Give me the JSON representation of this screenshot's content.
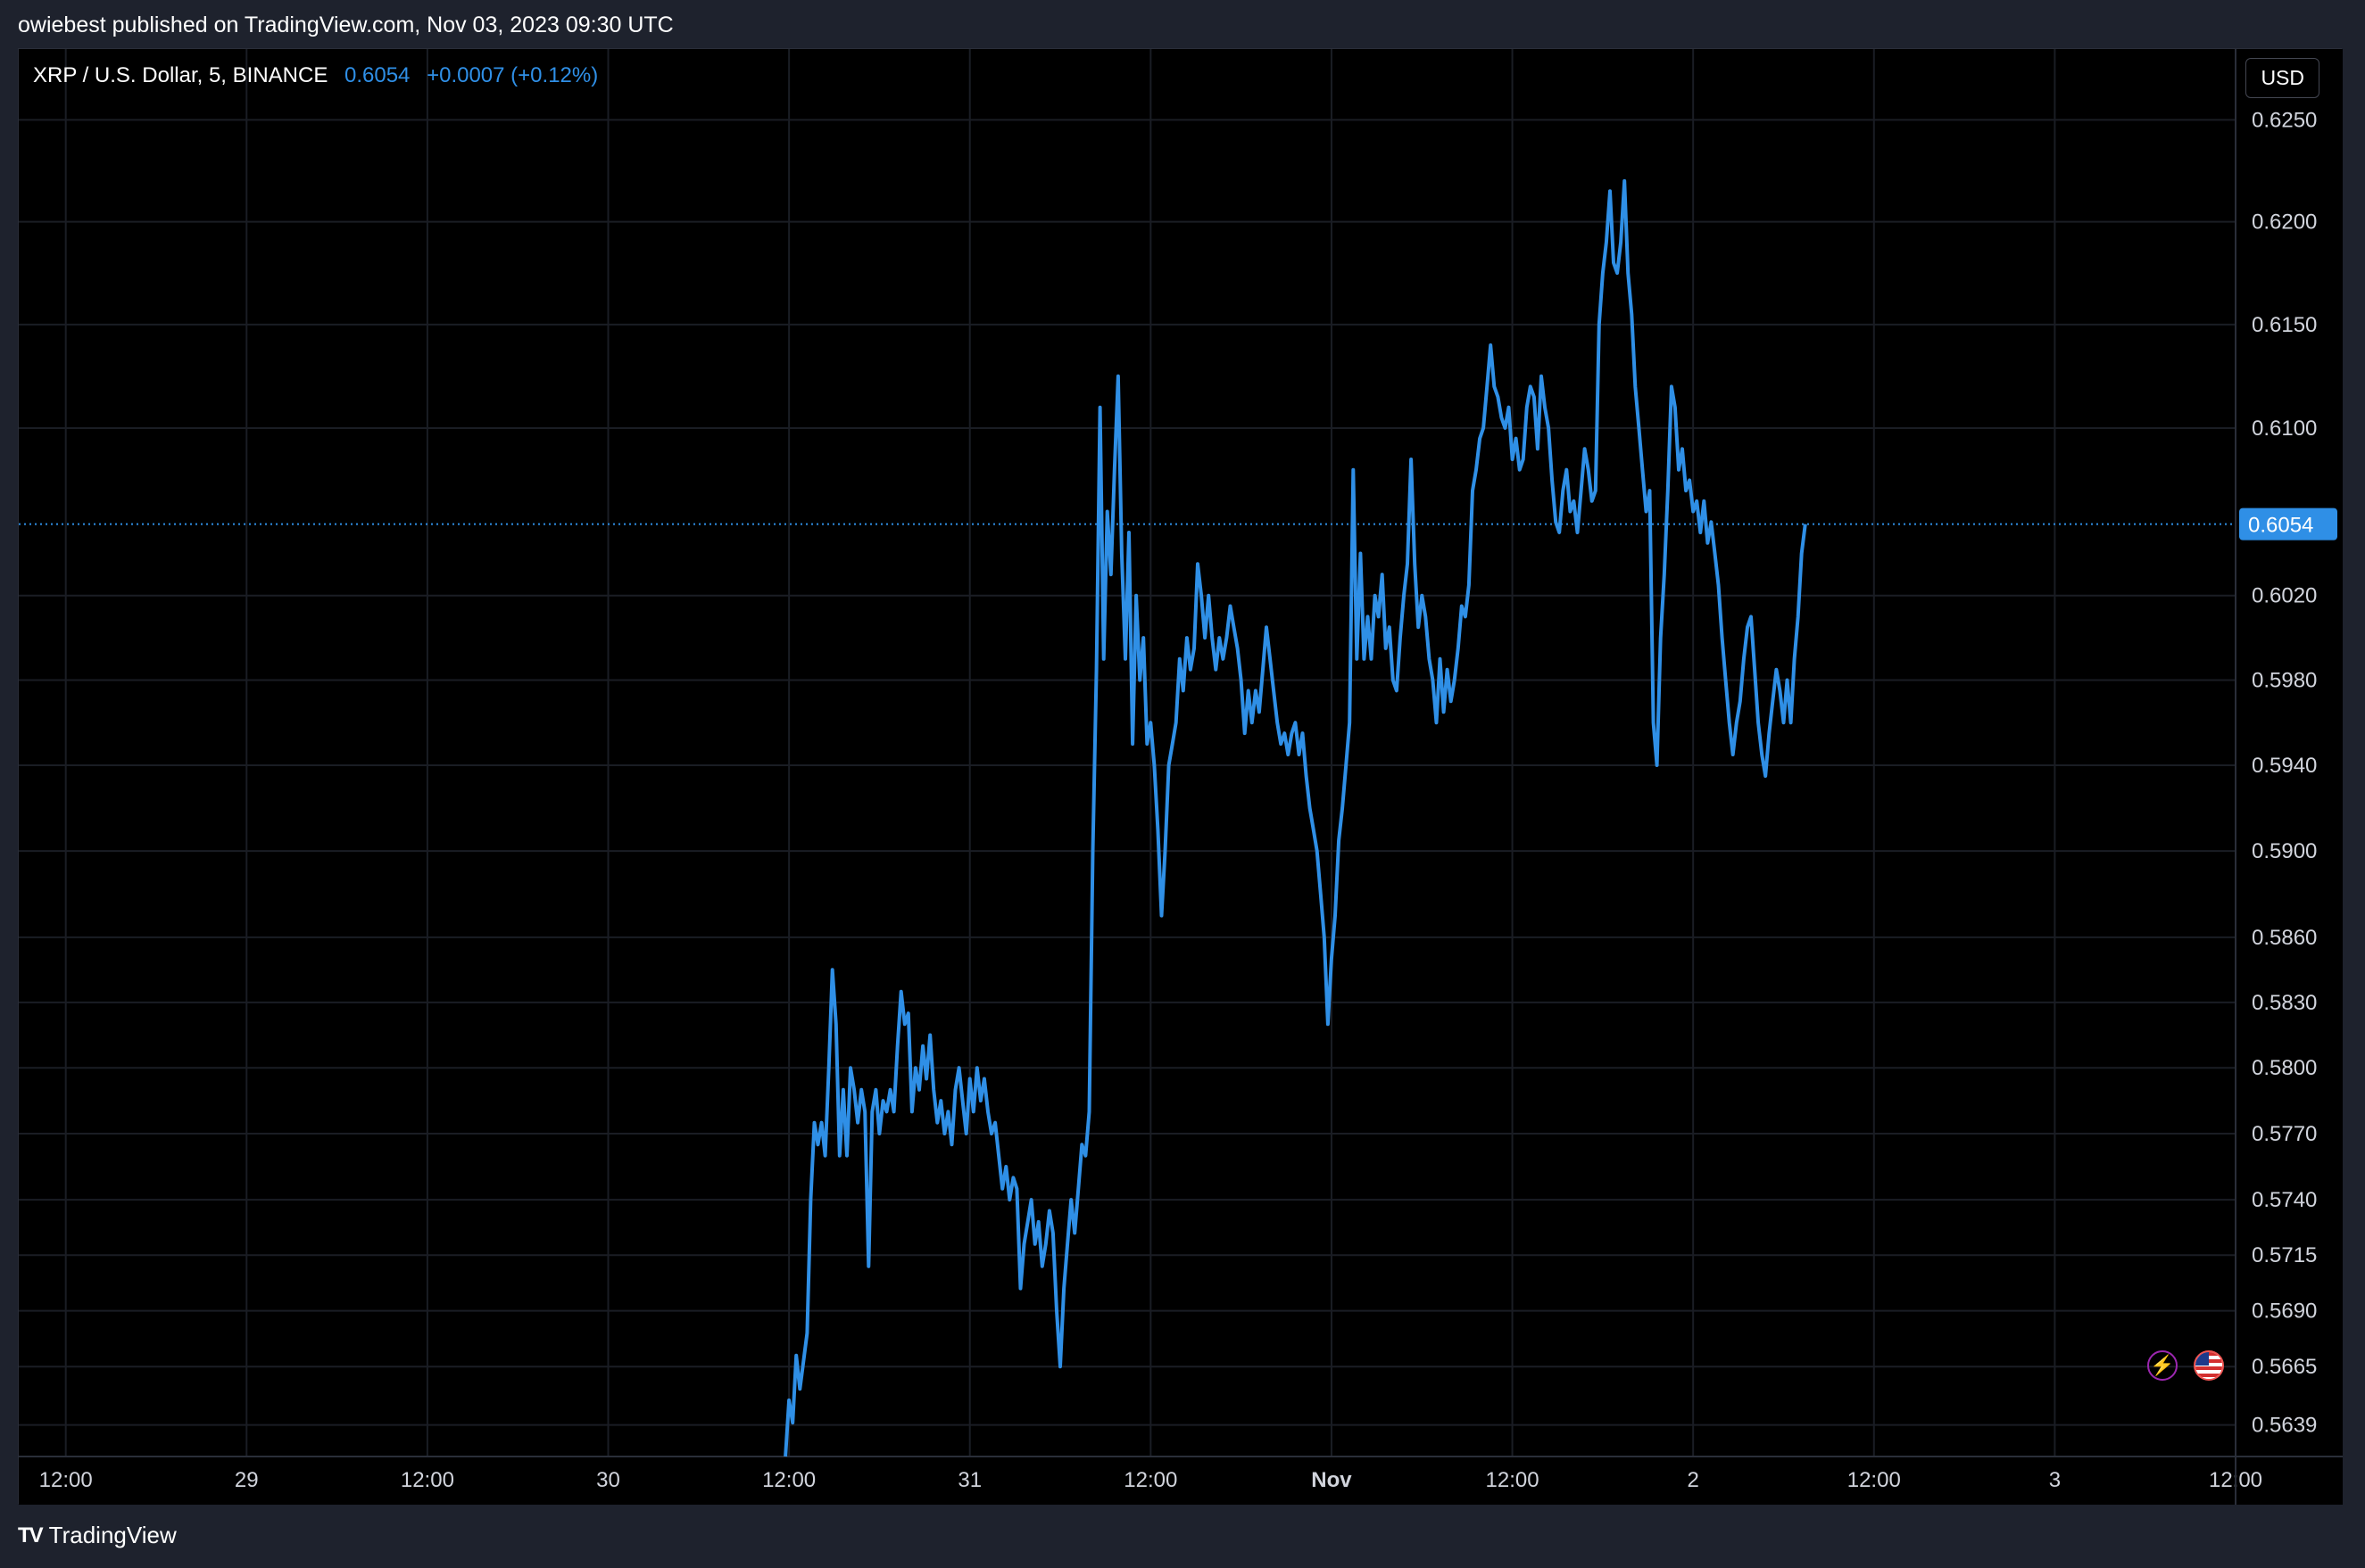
{
  "header": {
    "caption": "owiebest published on TradingView.com, Nov 03, 2023 09:30 UTC"
  },
  "legend": {
    "symbol": "XRP / U.S. Dollar, 5, BINANCE",
    "last_price": "0.6054",
    "change": "+0.0007 (+0.12%)"
  },
  "currency_button": "USD",
  "footer": {
    "brand": "TradingView"
  },
  "icons": {
    "alert": "lightning-icon",
    "market": "us-flag-icon"
  },
  "colors": {
    "line": "#2f8fe6",
    "background": "#000000",
    "grid": "#1a1d24",
    "axis_text": "#d1d4dc",
    "price_label_bg": "#2f8fe6"
  },
  "chart_data": {
    "type": "line",
    "title": "XRP / U.S. Dollar, 5, BINANCE",
    "xlabel": "",
    "ylabel": "",
    "x_range": [
      -0.13,
      6.0
    ],
    "ylim": [
      0.5625,
      0.6285
    ],
    "y_scale": "log",
    "grid": true,
    "last_price_line": 0.6054,
    "x_ticks": [
      {
        "x": 0.0,
        "label": "12:00"
      },
      {
        "x": 0.5,
        "label": "29"
      },
      {
        "x": 1.0,
        "label": "12:00"
      },
      {
        "x": 1.5,
        "label": "30"
      },
      {
        "x": 2.0,
        "label": "12:00"
      },
      {
        "x": 2.5,
        "label": "31"
      },
      {
        "x": 3.0,
        "label": "12:00"
      },
      {
        "x": 3.5,
        "label": "Nov"
      },
      {
        "x": 4.0,
        "label": "12:00"
      },
      {
        "x": 4.5,
        "label": "2"
      },
      {
        "x": 5.0,
        "label": "12:00"
      },
      {
        "x": 5.5,
        "label": "3"
      },
      {
        "x": 6.0,
        "label": "12:00"
      }
    ],
    "y_ticks": [
      0.625,
      0.62,
      0.615,
      0.61,
      0.602,
      0.598,
      0.594,
      0.59,
      0.586,
      0.583,
      0.58,
      0.577,
      0.574,
      0.5715,
      0.569,
      0.5665,
      0.5639
    ],
    "y_tick_labels": [
      "0.6250",
      "0.6200",
      "0.6150",
      "0.6100",
      "0.6020",
      "0.5980",
      "0.5940",
      "0.5900",
      "0.5860",
      "0.5830",
      "0.5800",
      "0.5770",
      "0.5740",
      "0.5715",
      "0.5690",
      "0.5665",
      "0.5639"
    ],
    "series": [
      {
        "points": [
          [
            1.99,
            0.5625
          ],
          [
            2.0,
            0.565
          ],
          [
            2.01,
            0.564
          ],
          [
            2.02,
            0.567
          ],
          [
            2.03,
            0.5655
          ],
          [
            2.05,
            0.568
          ],
          [
            2.06,
            0.574
          ],
          [
            2.07,
            0.5775
          ],
          [
            2.08,
            0.5765
          ],
          [
            2.09,
            0.5775
          ],
          [
            2.1,
            0.576
          ],
          [
            2.11,
            0.58
          ],
          [
            2.12,
            0.5845
          ],
          [
            2.13,
            0.582
          ],
          [
            2.14,
            0.576
          ],
          [
            2.15,
            0.579
          ],
          [
            2.16,
            0.576
          ],
          [
            2.17,
            0.58
          ],
          [
            2.18,
            0.579
          ],
          [
            2.19,
            0.5775
          ],
          [
            2.2,
            0.579
          ],
          [
            2.21,
            0.578
          ],
          [
            2.22,
            0.571
          ],
          [
            2.23,
            0.578
          ],
          [
            2.24,
            0.579
          ],
          [
            2.25,
            0.577
          ],
          [
            2.26,
            0.5785
          ],
          [
            2.27,
            0.578
          ],
          [
            2.28,
            0.579
          ],
          [
            2.29,
            0.578
          ],
          [
            2.3,
            0.581
          ],
          [
            2.31,
            0.5835
          ],
          [
            2.32,
            0.582
          ],
          [
            2.33,
            0.5825
          ],
          [
            2.34,
            0.578
          ],
          [
            2.35,
            0.58
          ],
          [
            2.36,
            0.579
          ],
          [
            2.37,
            0.581
          ],
          [
            2.38,
            0.5795
          ],
          [
            2.39,
            0.5815
          ],
          [
            2.4,
            0.579
          ],
          [
            2.41,
            0.5775
          ],
          [
            2.42,
            0.5785
          ],
          [
            2.43,
            0.577
          ],
          [
            2.44,
            0.578
          ],
          [
            2.45,
            0.5765
          ],
          [
            2.46,
            0.579
          ],
          [
            2.47,
            0.58
          ],
          [
            2.48,
            0.5785
          ],
          [
            2.49,
            0.577
          ],
          [
            2.5,
            0.5795
          ],
          [
            2.51,
            0.578
          ],
          [
            2.52,
            0.58
          ],
          [
            2.53,
            0.5785
          ],
          [
            2.54,
            0.5795
          ],
          [
            2.55,
            0.578
          ],
          [
            2.56,
            0.577
          ],
          [
            2.57,
            0.5775
          ],
          [
            2.58,
            0.576
          ],
          [
            2.59,
            0.5745
          ],
          [
            2.6,
            0.5755
          ],
          [
            2.61,
            0.574
          ],
          [
            2.62,
            0.575
          ],
          [
            2.63,
            0.5745
          ],
          [
            2.64,
            0.57
          ],
          [
            2.65,
            0.572
          ],
          [
            2.66,
            0.573
          ],
          [
            2.67,
            0.574
          ],
          [
            2.68,
            0.572
          ],
          [
            2.69,
            0.573
          ],
          [
            2.7,
            0.571
          ],
          [
            2.71,
            0.572
          ],
          [
            2.72,
            0.5735
          ],
          [
            2.73,
            0.5725
          ],
          [
            2.74,
            0.569
          ],
          [
            2.75,
            0.5665
          ],
          [
            2.76,
            0.57
          ],
          [
            2.77,
            0.572
          ],
          [
            2.78,
            0.574
          ],
          [
            2.79,
            0.5725
          ],
          [
            2.8,
            0.5745
          ],
          [
            2.81,
            0.5765
          ],
          [
            2.82,
            0.576
          ],
          [
            2.83,
            0.578
          ],
          [
            2.84,
            0.59
          ],
          [
            2.85,
            0.5985
          ],
          [
            2.86,
            0.611
          ],
          [
            2.87,
            0.599
          ],
          [
            2.88,
            0.606
          ],
          [
            2.89,
            0.603
          ],
          [
            2.9,
            0.608
          ],
          [
            2.91,
            0.6125
          ],
          [
            2.92,
            0.604
          ],
          [
            2.93,
            0.599
          ],
          [
            2.94,
            0.605
          ],
          [
            2.95,
            0.595
          ],
          [
            2.96,
            0.602
          ],
          [
            2.97,
            0.598
          ],
          [
            2.98,
            0.6
          ],
          [
            2.99,
            0.595
          ],
          [
            3.0,
            0.596
          ],
          [
            3.01,
            0.594
          ],
          [
            3.02,
            0.591
          ],
          [
            3.03,
            0.587
          ],
          [
            3.04,
            0.59
          ],
          [
            3.05,
            0.594
          ],
          [
            3.06,
            0.595
          ],
          [
            3.07,
            0.596
          ],
          [
            3.08,
            0.599
          ],
          [
            3.09,
            0.5975
          ],
          [
            3.1,
            0.6
          ],
          [
            3.11,
            0.5985
          ],
          [
            3.12,
            0.5995
          ],
          [
            3.13,
            0.6035
          ],
          [
            3.14,
            0.602
          ],
          [
            3.15,
            0.6
          ],
          [
            3.16,
            0.602
          ],
          [
            3.17,
            0.6
          ],
          [
            3.18,
            0.5985
          ],
          [
            3.19,
            0.6
          ],
          [
            3.2,
            0.599
          ],
          [
            3.21,
            0.6
          ],
          [
            3.22,
            0.6015
          ],
          [
            3.23,
            0.6005
          ],
          [
            3.24,
            0.5995
          ],
          [
            3.25,
            0.598
          ],
          [
            3.26,
            0.5955
          ],
          [
            3.27,
            0.5975
          ],
          [
            3.28,
            0.596
          ],
          [
            3.29,
            0.5975
          ],
          [
            3.3,
            0.5965
          ],
          [
            3.31,
            0.5985
          ],
          [
            3.32,
            0.6005
          ],
          [
            3.33,
            0.599
          ],
          [
            3.34,
            0.5975
          ],
          [
            3.35,
            0.596
          ],
          [
            3.36,
            0.595
          ],
          [
            3.37,
            0.5955
          ],
          [
            3.38,
            0.5945
          ],
          [
            3.39,
            0.5955
          ],
          [
            3.4,
            0.596
          ],
          [
            3.41,
            0.5945
          ],
          [
            3.42,
            0.5955
          ],
          [
            3.43,
            0.5935
          ],
          [
            3.44,
            0.592
          ],
          [
            3.45,
            0.591
          ],
          [
            3.46,
            0.59
          ],
          [
            3.47,
            0.588
          ],
          [
            3.48,
            0.586
          ],
          [
            3.49,
            0.582
          ],
          [
            3.5,
            0.585
          ],
          [
            3.51,
            0.587
          ],
          [
            3.52,
            0.5905
          ],
          [
            3.53,
            0.592
          ],
          [
            3.54,
            0.594
          ],
          [
            3.55,
            0.596
          ],
          [
            3.56,
            0.608
          ],
          [
            3.57,
            0.599
          ],
          [
            3.58,
            0.604
          ],
          [
            3.59,
            0.599
          ],
          [
            3.6,
            0.601
          ],
          [
            3.61,
            0.599
          ],
          [
            3.62,
            0.602
          ],
          [
            3.63,
            0.601
          ],
          [
            3.64,
            0.603
          ],
          [
            3.65,
            0.5995
          ],
          [
            3.66,
            0.6005
          ],
          [
            3.67,
            0.598
          ],
          [
            3.68,
            0.5975
          ],
          [
            3.69,
            0.6
          ],
          [
            3.7,
            0.602
          ],
          [
            3.71,
            0.6035
          ],
          [
            3.72,
            0.6085
          ],
          [
            3.73,
            0.6035
          ],
          [
            3.74,
            0.6005
          ],
          [
            3.75,
            0.602
          ],
          [
            3.76,
            0.601
          ],
          [
            3.77,
            0.599
          ],
          [
            3.78,
            0.598
          ],
          [
            3.79,
            0.596
          ],
          [
            3.8,
            0.599
          ],
          [
            3.81,
            0.5965
          ],
          [
            3.82,
            0.5985
          ],
          [
            3.83,
            0.597
          ],
          [
            3.84,
            0.598
          ],
          [
            3.85,
            0.5995
          ],
          [
            3.86,
            0.6015
          ],
          [
            3.87,
            0.601
          ],
          [
            3.88,
            0.6025
          ],
          [
            3.89,
            0.607
          ],
          [
            3.9,
            0.608
          ],
          [
            3.91,
            0.6095
          ],
          [
            3.92,
            0.61
          ],
          [
            3.93,
            0.612
          ],
          [
            3.94,
            0.614
          ],
          [
            3.95,
            0.612
          ],
          [
            3.96,
            0.6115
          ],
          [
            3.97,
            0.6105
          ],
          [
            3.98,
            0.61
          ],
          [
            3.99,
            0.611
          ],
          [
            4.0,
            0.6085
          ],
          [
            4.01,
            0.6095
          ],
          [
            4.02,
            0.608
          ],
          [
            4.03,
            0.6085
          ],
          [
            4.04,
            0.611
          ],
          [
            4.05,
            0.612
          ],
          [
            4.06,
            0.6115
          ],
          [
            4.07,
            0.609
          ],
          [
            4.08,
            0.6125
          ],
          [
            4.09,
            0.611
          ],
          [
            4.1,
            0.61
          ],
          [
            4.11,
            0.6075
          ],
          [
            4.12,
            0.6055
          ],
          [
            4.13,
            0.605
          ],
          [
            4.14,
            0.607
          ],
          [
            4.15,
            0.608
          ],
          [
            4.16,
            0.606
          ],
          [
            4.17,
            0.6065
          ],
          [
            4.18,
            0.605
          ],
          [
            4.19,
            0.607
          ],
          [
            4.2,
            0.609
          ],
          [
            4.21,
            0.608
          ],
          [
            4.22,
            0.6065
          ],
          [
            4.23,
            0.607
          ],
          [
            4.24,
            0.615
          ],
          [
            4.25,
            0.6175
          ],
          [
            4.26,
            0.619
          ],
          [
            4.27,
            0.6215
          ],
          [
            4.28,
            0.618
          ],
          [
            4.29,
            0.6175
          ],
          [
            4.3,
            0.619
          ],
          [
            4.31,
            0.622
          ],
          [
            4.32,
            0.6175
          ],
          [
            4.33,
            0.6155
          ],
          [
            4.34,
            0.612
          ],
          [
            4.35,
            0.61
          ],
          [
            4.36,
            0.608
          ],
          [
            4.37,
            0.606
          ],
          [
            4.38,
            0.607
          ],
          [
            4.39,
            0.596
          ],
          [
            4.4,
            0.594
          ],
          [
            4.41,
            0.6
          ],
          [
            4.42,
            0.603
          ],
          [
            4.43,
            0.607
          ],
          [
            4.44,
            0.612
          ],
          [
            4.45,
            0.611
          ],
          [
            4.46,
            0.608
          ],
          [
            4.47,
            0.609
          ],
          [
            4.48,
            0.607
          ],
          [
            4.49,
            0.6075
          ],
          [
            4.5,
            0.606
          ],
          [
            4.51,
            0.6065
          ],
          [
            4.52,
            0.605
          ],
          [
            4.53,
            0.6065
          ],
          [
            4.54,
            0.6045
          ],
          [
            4.55,
            0.6055
          ],
          [
            4.56,
            0.604
          ],
          [
            4.57,
            0.6025
          ],
          [
            4.58,
            0.6
          ],
          [
            4.59,
            0.598
          ],
          [
            4.6,
            0.596
          ],
          [
            4.61,
            0.5945
          ],
          [
            4.62,
            0.596
          ],
          [
            4.63,
            0.597
          ],
          [
            4.64,
            0.599
          ],
          [
            4.65,
            0.6005
          ],
          [
            4.66,
            0.601
          ],
          [
            4.67,
            0.5985
          ],
          [
            4.68,
            0.596
          ],
          [
            4.69,
            0.5945
          ],
          [
            4.7,
            0.5935
          ],
          [
            4.71,
            0.5955
          ],
          [
            4.72,
            0.597
          ],
          [
            4.73,
            0.5985
          ],
          [
            4.74,
            0.5975
          ],
          [
            4.75,
            0.596
          ],
          [
            4.76,
            0.598
          ],
          [
            4.77,
            0.596
          ],
          [
            4.78,
            0.599
          ],
          [
            4.79,
            0.601
          ],
          [
            4.8,
            0.604
          ],
          [
            4.81,
            0.6054
          ]
        ]
      }
    ]
  }
}
